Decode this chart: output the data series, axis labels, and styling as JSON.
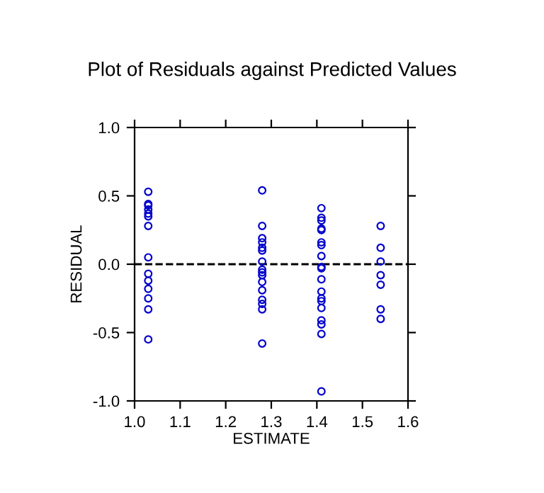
{
  "chart_data": {
    "type": "scatter",
    "title": "Plot of Residuals against Predicted Values",
    "xlabel": "ESTIMATE",
    "ylabel": "RESIDUAL",
    "xlim": [
      1.0,
      1.6
    ],
    "xticks": [
      {
        "value": 1.0,
        "label": "1.0"
      },
      1.1,
      1.2,
      1.3,
      1.4,
      1.5,
      1.6
    ],
    "ylim": [
      -1.0,
      1.0
    ],
    "yticks": [
      {
        "value": -1.0,
        "label": "-1.0"
      },
      {
        "value": -0.5,
        "label": "-0.5"
      },
      {
        "value": 0.0,
        "label": "0.0"
      },
      0.5,
      {
        "value": 1.0,
        "label": "1.0"
      }
    ],
    "marker": "circle",
    "grid": false,
    "legend": false,
    "ref_lines": [
      {
        "axis": "y",
        "value": 0,
        "label": null,
        "color": "#000000",
        "line_style": "dashed"
      }
    ],
    "series": [
      {
        "color": "#0000cc",
        "x": [
          1.03,
          1.03,
          1.03,
          1.03,
          1.03,
          1.03,
          1.03,
          1.03,
          1.03,
          1.03,
          1.03,
          1.03,
          1.03,
          1.03,
          1.28,
          1.28,
          1.28,
          1.28,
          1.28,
          1.28,
          1.28,
          1.28,
          1.28,
          1.28,
          1.28,
          1.28,
          1.28,
          1.28,
          1.28,
          1.28,
          1.41,
          1.41,
          1.41,
          1.41,
          1.41,
          1.41,
          1.41,
          1.41,
          1.41,
          1.41,
          1.41,
          1.41,
          1.41,
          1.41,
          1.41,
          1.41,
          1.41,
          1.41,
          1.41,
          1.54,
          1.54,
          1.54,
          1.54,
          1.54,
          1.54,
          1.54
        ],
        "values": [
          0.53,
          0.44,
          0.43,
          0.4,
          0.37,
          0.35,
          0.28,
          0.05,
          -0.07,
          -0.12,
          -0.18,
          -0.25,
          -0.33,
          -0.55,
          0.54,
          0.28,
          0.19,
          0.16,
          0.12,
          0.1,
          0.02,
          -0.04,
          -0.06,
          -0.08,
          -0.13,
          -0.19,
          -0.26,
          -0.29,
          -0.33,
          -0.58,
          0.41,
          0.34,
          0.32,
          0.26,
          0.25,
          0.16,
          0.14,
          0.06,
          -0.02,
          -0.03,
          -0.11,
          -0.2,
          -0.25,
          -0.27,
          -0.32,
          -0.41,
          -0.44,
          -0.51,
          -0.93,
          0.28,
          0.12,
          0.02,
          -0.08,
          -0.15,
          -0.33,
          -0.4
        ]
      }
    ]
  }
}
